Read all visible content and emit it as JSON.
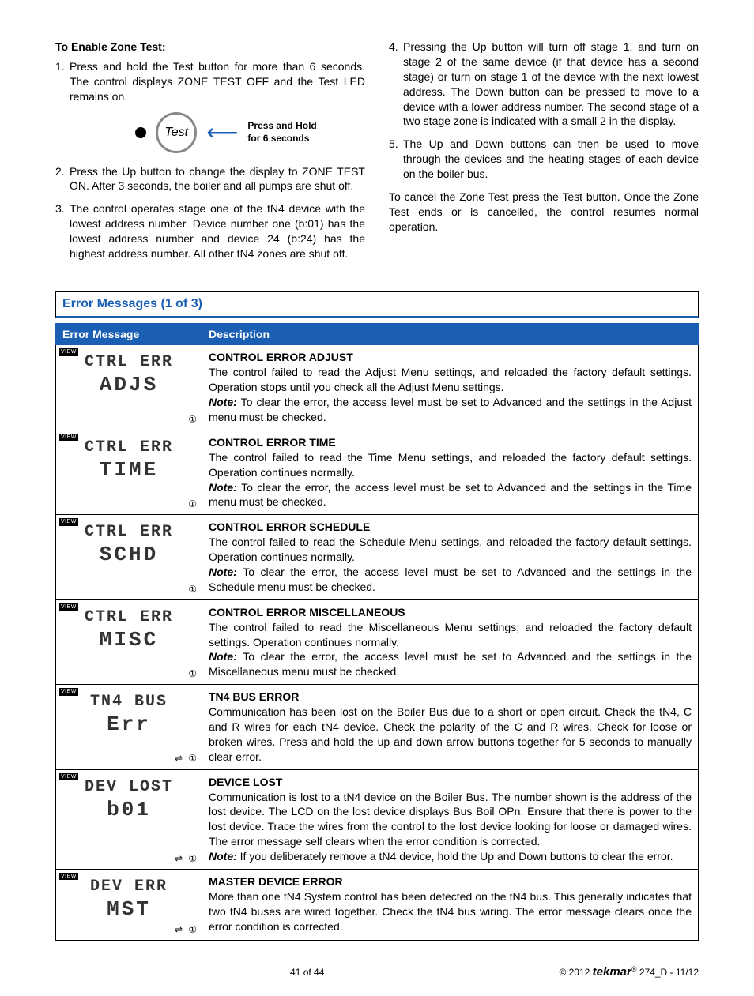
{
  "left_col": {
    "heading": "To Enable Zone Test:",
    "items": [
      {
        "n": "1.",
        "t": "Press and hold the Test button for more than 6 seconds. The control displays ZONE TEST OFF and the Test LED remains on."
      },
      {
        "n": "2.",
        "t": "Press the Up button to change the display to ZONE TEST ON. After 3 seconds, the boiler and all pumps are shut off."
      },
      {
        "n": "3.",
        "t": "The control operates stage one of the tN4 device with the lowest address number. Device number one (b:01) has the lowest address number and device 24 (b:24) has the highest address number. All other tN4 zones are shut off."
      }
    ],
    "fig_button": "Test",
    "fig_label_1": "Press and Hold",
    "fig_label_2": "for 6 seconds"
  },
  "right_col": {
    "items": [
      {
        "n": "4.",
        "t": "Pressing the Up button will turn off stage 1, and turn on stage 2 of the same device (if that device has a second stage) or turn on stage 1 of the device with the next lowest address. The Down button can be pressed to move to a device with a lower address number. The second stage of a two stage zone is indicated with a small 2 in the display."
      },
      {
        "n": "5.",
        "t": "The Up and Down buttons can then be used to move through the devices and the heating stages of each device on the boiler bus."
      }
    ],
    "para": "To cancel the Zone Test press the Test button. Once the Zone Test ends or is cancelled, the control resumes normal operation."
  },
  "section_title": "Error Messages (1 of 3)",
  "table_headers": {
    "c1": "Error Message",
    "c2": "Description"
  },
  "errors": [
    {
      "lcd1": "CTRL ERR",
      "lcd2": "ADJS",
      "corner": "①",
      "title": "CONTROL ERROR ADJUST",
      "body": "The control failed to read the Adjust Menu settings, and reloaded the factory default settings. Operation stops until you check all the Adjust Menu settings.",
      "note": "To clear the error, the access level must be set to Advanced and the settings in the Adjust menu must be checked."
    },
    {
      "lcd1": "CTRL ERR",
      "lcd2": "TIME",
      "corner": "①",
      "title": "CONTROL ERROR TIME",
      "body": "The control failed to read the Time Menu settings, and reloaded the factory default settings. Operation continues normally.",
      "note": "To clear the error, the access level must be set to Advanced and the settings in the Time menu must be checked."
    },
    {
      "lcd1": "CTRL ERR",
      "lcd2": "SCHD",
      "corner": "①",
      "title": "CONTROL ERROR SCHEDULE",
      "body": "The control failed to read the Schedule Menu settings, and reloaded the factory default settings. Operation continues normally.",
      "note": "To clear the error, the access level must be set to Advanced and the settings in the Schedule menu must be checked."
    },
    {
      "lcd1": "CTRL ERR",
      "lcd2": "MISC",
      "corner": "①",
      "title": "CONTROL ERROR MISCELLANEOUS",
      "body": "The control failed to read the Miscellaneous Menu settings, and reloaded the factory default settings. Operation continues normally.",
      "note": "To clear the error, the access level must be set to Advanced and the settings in the Miscellaneous menu must be checked."
    },
    {
      "lcd1": "TN4 BUS",
      "lcd2": "Err",
      "corner": "⇌ ①",
      "title": "TN4 BUS ERROR",
      "body": "Communication has been lost on the Boiler Bus due to a short or open circuit. Check the tN4, C and R wires for each tN4 device. Check the polarity of the C and R wires. Check for loose or broken wires. Press and hold the up and down arrow buttons together for 5 seconds to manually clear error.",
      "note": ""
    },
    {
      "lcd1": "DEV LOST",
      "lcd2": "b01",
      "corner": "⇌ ①",
      "title": "DEVICE LOST",
      "body": "Communication is lost to a tN4 device on the Boiler Bus. The number shown is the address of the lost device. The LCD on the lost device displays Bus Boil OPn. Ensure that there is power to the lost device. Trace the wires from the control to the lost device looking for loose or damaged wires. The error message self clears when the error condition is corrected.",
      "note": "If you deliberately remove a tN4 device, hold the Up and Down buttons to clear the error."
    },
    {
      "lcd1": "DEV ERR",
      "lcd2": "MST",
      "corner": "⇌ ①",
      "title": "MASTER DEVICE ERROR",
      "body": "More than one tN4 System control has been detected on the tN4 bus. This generally indicates that two tN4 buses are wired together. Check the tN4 bus wiring. The error message clears once the error condition is corrected.",
      "note": ""
    }
  ],
  "footer": {
    "page": "41 of 44",
    "copyright": "© 2012",
    "brand": "tekmar",
    "doc": " 274_D - 11/12"
  },
  "note_label": "Note: "
}
